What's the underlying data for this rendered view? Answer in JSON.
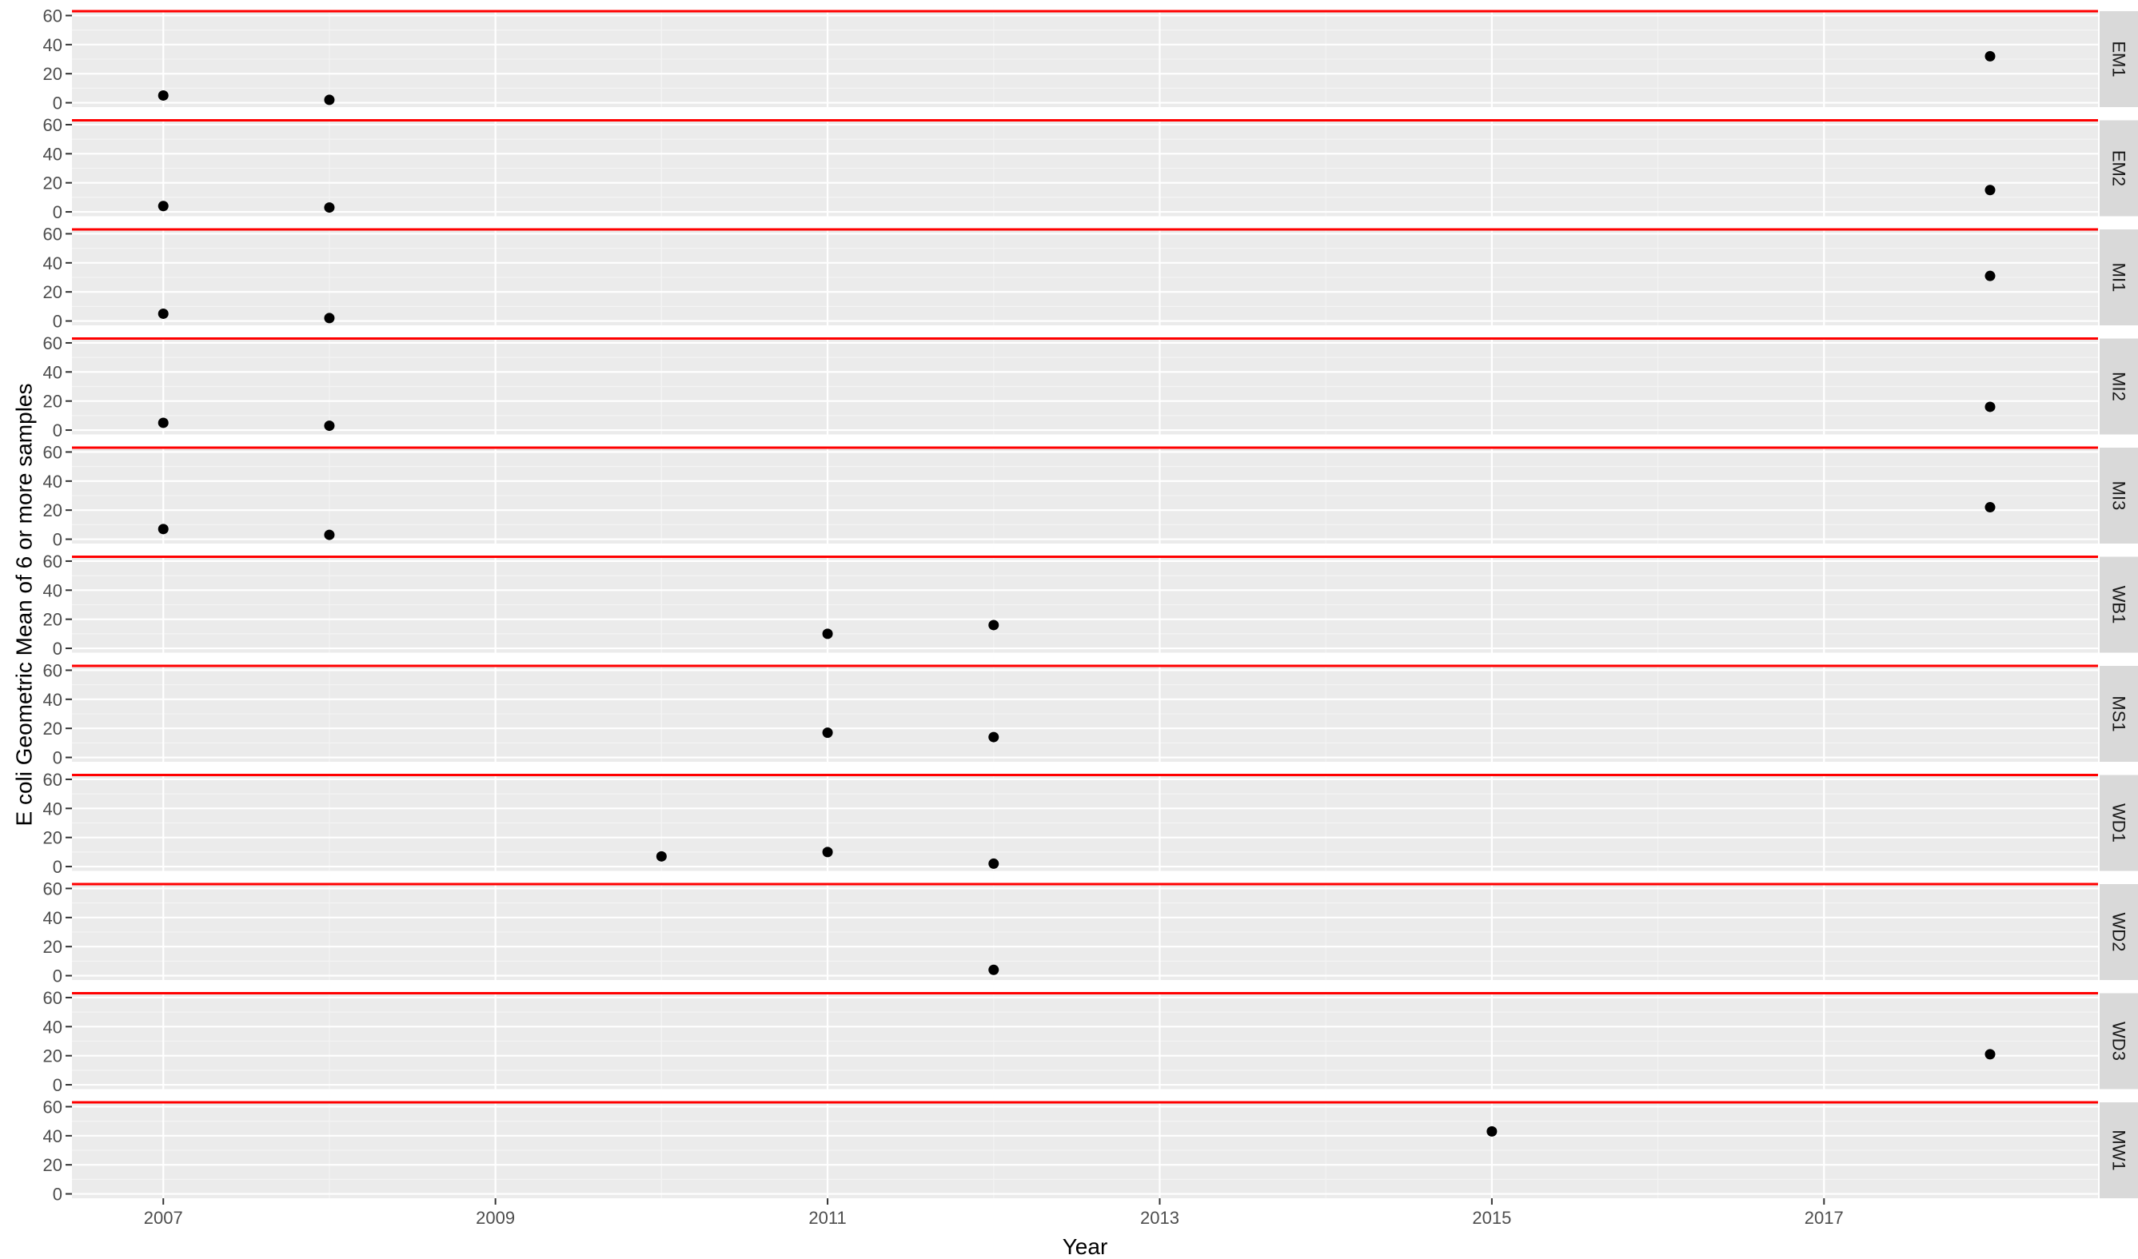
{
  "chart_data": {
    "type": "scatter",
    "facet_layout": "rows",
    "xlabel": "Year",
    "ylabel": "E coli Geometric Mean of 6 or more samples",
    "xlim": [
      2006.45,
      2018.65
    ],
    "ylim": [
      -3,
      63
    ],
    "x_ticks": [
      2007,
      2009,
      2011,
      2013,
      2015,
      2017
    ],
    "y_ticks": [
      0,
      20,
      40,
      60
    ],
    "reference_line": {
      "y": 63,
      "color": "#ff0000"
    },
    "grid": true,
    "panel_background": "#ebebeb",
    "strip_background": "#d9d9d9",
    "point_color": "#000000",
    "facets": [
      {
        "label": "EM1",
        "points": [
          [
            2007,
            5
          ],
          [
            2008,
            2
          ],
          [
            2018,
            32
          ]
        ]
      },
      {
        "label": "EM2",
        "points": [
          [
            2007,
            4
          ],
          [
            2008,
            3
          ],
          [
            2018,
            15
          ]
        ]
      },
      {
        "label": "MI1",
        "points": [
          [
            2007,
            5
          ],
          [
            2008,
            2
          ],
          [
            2018,
            31
          ]
        ]
      },
      {
        "label": "MI2",
        "points": [
          [
            2007,
            5
          ],
          [
            2008,
            3
          ],
          [
            2018,
            16
          ]
        ]
      },
      {
        "label": "MI3",
        "points": [
          [
            2007,
            7
          ],
          [
            2008,
            3
          ],
          [
            2018,
            22
          ]
        ]
      },
      {
        "label": "WB1",
        "points": [
          [
            2011,
            10
          ],
          [
            2012,
            16
          ]
        ]
      },
      {
        "label": "MS1",
        "points": [
          [
            2011,
            17
          ],
          [
            2012,
            14
          ]
        ]
      },
      {
        "label": "WD1",
        "points": [
          [
            2010,
            7
          ],
          [
            2011,
            10
          ],
          [
            2012,
            2
          ]
        ]
      },
      {
        "label": "WD2",
        "points": [
          [
            2012,
            4
          ]
        ]
      },
      {
        "label": "WD3",
        "points": [
          [
            2018,
            21
          ]
        ]
      },
      {
        "label": "MW1",
        "points": [
          [
            2015,
            43
          ]
        ]
      }
    ]
  }
}
